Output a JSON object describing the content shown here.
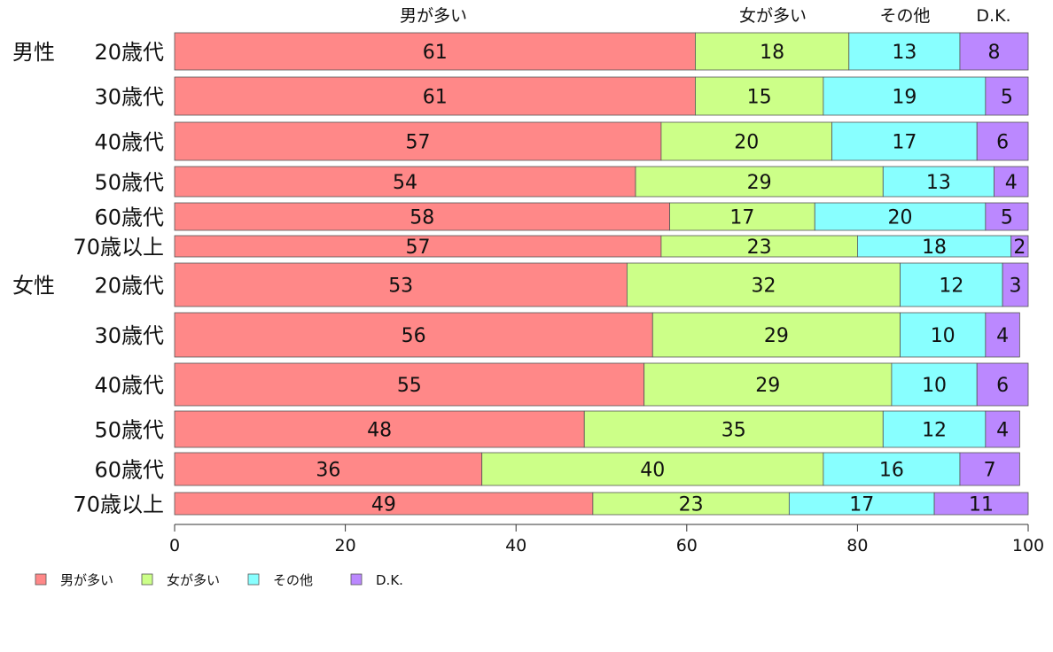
{
  "chart_data": {
    "type": "bar",
    "orientation": "horizontal",
    "stacked": true,
    "groups": [
      {
        "name": "男性",
        "categories": [
          "20歳代",
          "30歳代",
          "40歳代",
          "50歳代",
          "60歳代",
          "70歳以上"
        ]
      },
      {
        "name": "女性",
        "categories": [
          "20歳代",
          "30歳代",
          "40歳代",
          "50歳代",
          "60歳代",
          "70歳以上"
        ]
      }
    ],
    "series": [
      {
        "name": "男が多い",
        "color": "#ff8888",
        "values": [
          61,
          61,
          57,
          54,
          58,
          57,
          53,
          56,
          55,
          48,
          36,
          49
        ]
      },
      {
        "name": "女が多い",
        "color": "#ccff88",
        "values": [
          18,
          15,
          20,
          29,
          17,
          23,
          32,
          29,
          29,
          35,
          40,
          23
        ]
      },
      {
        "name": "その他",
        "color": "#88ffff",
        "values": [
          13,
          19,
          17,
          13,
          20,
          18,
          12,
          10,
          10,
          12,
          16,
          17
        ]
      },
      {
        "name": "D.K.",
        "color": "#bb88ff",
        "values": [
          8,
          5,
          6,
          4,
          5,
          2,
          3,
          4,
          6,
          4,
          7,
          11
        ]
      }
    ],
    "xlim": [
      0,
      100
    ],
    "xticks": [
      0,
      20,
      40,
      60,
      80,
      100
    ],
    "legend_position": "bottom-left",
    "top_labels": [
      "男が多い",
      "女が多い",
      "その他",
      "D.K."
    ]
  }
}
